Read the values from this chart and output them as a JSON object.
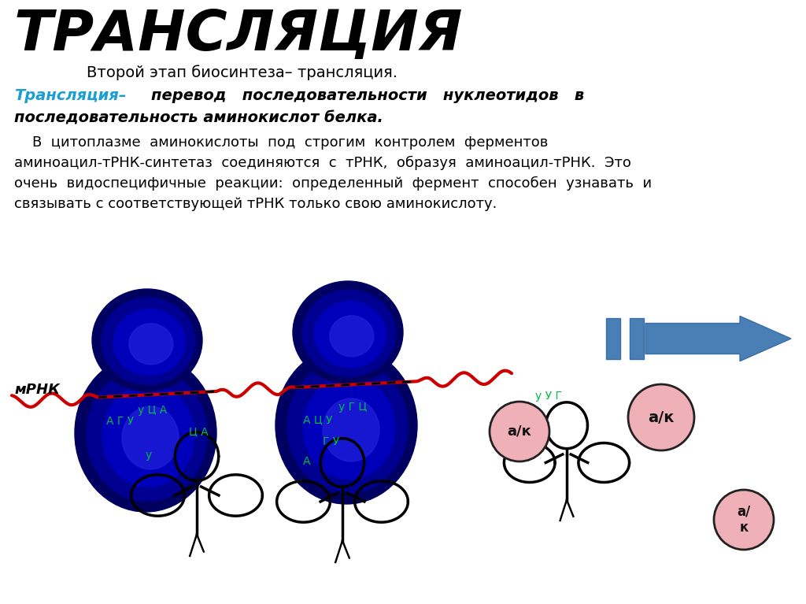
{
  "title": "ТРАНСЛЯЦИЯ",
  "subtitle": "Второй этап биосинтеза– трансляция.",
  "body_line1": "    В  цитоплазме  аминокислоты  под  строгим  контролем  ферментов",
  "body_line2": "аминоацил-тРНК-синтетаз  соединяются  с  тРНК,  образуя  аминоацил-тРНК.  Это",
  "body_line3": "очень  видоспецифичные  реакции:  определенный  фермент  способен  узнавать  и",
  "body_line4": "связывать с соответствующей тРНК только свою аминокислоту.",
  "mrna_label": "мРНК",
  "codon1": "А Г У",
  "codon2": "у Ц А",
  "codon3": "А Ц У",
  "codon4": "у Г Ц",
  "trna1_anticodon_top": "Ц А",
  "trna1_anticodon_left": "у",
  "trna2_anticodon_top": "Г У",
  "trna2_anticodon_left": "А",
  "trna3_anticodon": "у У Г",
  "ak_label": "а/к",
  "background_color": "#ffffff",
  "title_color": "#000000",
  "subtitle_color": "#000000",
  "cyan_color": "#1a9fd4",
  "ribosome_dark": "#000080",
  "ribosome_mid": "#0000cc",
  "ribosome_highlight": "#3333ff",
  "mrna_color": "#cc0000",
  "codon_color": "#00bb44",
  "trna_color": "#000000",
  "ak_fill": "#f0b0b8",
  "ak_edge": "#222222",
  "ak_text": "#111111",
  "arrow_fill": "#4a7fb5",
  "arrow_edge": "#3a6fa5"
}
